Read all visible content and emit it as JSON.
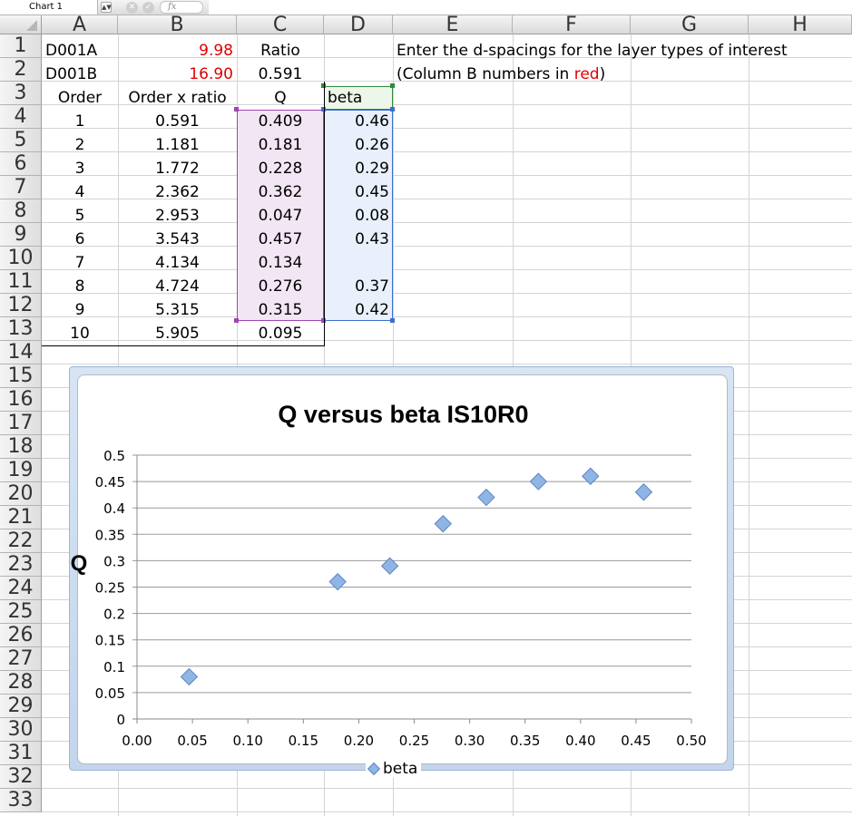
{
  "formula_bar": {
    "name_box": "Chart 1",
    "fx_label": "fx",
    "cancel_icon": "close-icon",
    "confirm_icon": "check-icon"
  },
  "columns": [
    "A",
    "B",
    "C",
    "D",
    "E",
    "F",
    "G",
    "H"
  ],
  "rows": [
    "1",
    "2",
    "3",
    "4",
    "5",
    "6",
    "7",
    "8",
    "9",
    "10",
    "11",
    "12",
    "13",
    "14",
    "15",
    "16",
    "17",
    "18",
    "19",
    "20",
    "21",
    "22",
    "23",
    "24",
    "25",
    "26",
    "27",
    "28",
    "29",
    "30",
    "31",
    "32",
    "33"
  ],
  "cells": {
    "a1": "D001A",
    "b1": "9.98",
    "c1": "Ratio",
    "a2": "D001B",
    "b2": "16.90",
    "c2": "0.591",
    "a3": "Order",
    "b3": "Order x ratio",
    "c3": "Q",
    "d3": "beta",
    "e1": "Enter the d-spacings for the layer types of interest",
    "e2_prefix": "(Column B numbers in ",
    "e2_red": "red",
    "e2_suffix": ")"
  },
  "table": {
    "orders": [
      "1",
      "2",
      "3",
      "4",
      "5",
      "6",
      "7",
      "8",
      "9",
      "10"
    ],
    "order_x_ratio": [
      "0.591",
      "1.181",
      "1.772",
      "2.362",
      "2.953",
      "3.543",
      "4.134",
      "4.724",
      "5.315",
      "5.905"
    ],
    "q": [
      "0.409",
      "0.181",
      "0.228",
      "0.362",
      "0.047",
      "0.457",
      "0.134",
      "0.276",
      "0.315",
      "0.095"
    ],
    "beta": [
      "0.46",
      "0.26",
      "0.29",
      "0.45",
      "0.08",
      "0.43",
      "",
      "0.37",
      "0.42"
    ]
  },
  "colors": {
    "red_text": "#e00000",
    "q_range_fill": "#f3e6f4",
    "beta_range_fill": "#e9f0fb",
    "marker_fill": "#8fb4e6",
    "marker_stroke": "#5c86c0"
  },
  "chart_data": {
    "type": "scatter",
    "title": "Q versus beta IS10R0",
    "xlabel": "",
    "ylabel": "Q",
    "xlim": [
      0,
      0.5
    ],
    "ylim": [
      0,
      0.5
    ],
    "x_ticks": [
      "0.00",
      "0.05",
      "0.10",
      "0.15",
      "0.20",
      "0.25",
      "0.30",
      "0.35",
      "0.40",
      "0.45",
      "0.50"
    ],
    "y_ticks": [
      "0",
      "0.05",
      "0.1",
      "0.15",
      "0.2",
      "0.25",
      "0.3",
      "0.35",
      "0.4",
      "0.45",
      "0.5"
    ],
    "grid": "horizontal",
    "legend": "bottom",
    "series": [
      {
        "name": "beta",
        "x": [
          0.047,
          0.181,
          0.228,
          0.276,
          0.315,
          0.362,
          0.409,
          0.457
        ],
        "y": [
          0.08,
          0.26,
          0.29,
          0.37,
          0.42,
          0.45,
          0.46,
          0.43
        ]
      }
    ]
  }
}
